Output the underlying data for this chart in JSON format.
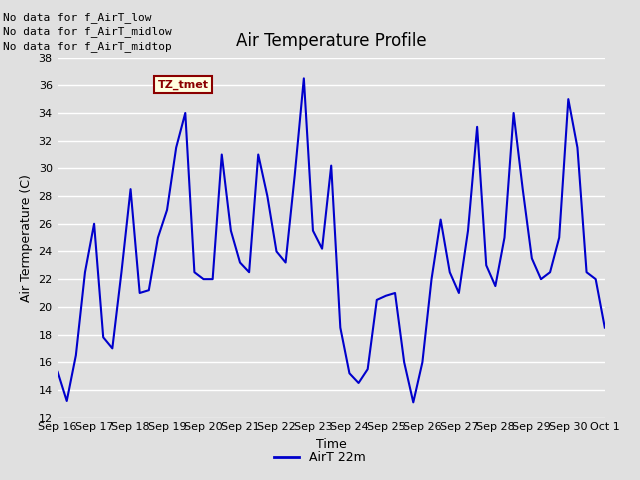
{
  "title": "Air Temperature Profile",
  "xlabel": "Time",
  "ylabel": "Air Termperature (C)",
  "ylim": [
    12,
    38
  ],
  "line_color": "#0000cc",
  "line_width": 1.5,
  "background_color": "#e0e0e0",
  "plot_bg_color": "#e0e0e0",
  "legend_label": "AirT 22m",
  "legend_line_color": "#0000cc",
  "no_data_texts": [
    "No data for f_AirT_low",
    "No data for f_AirT_midlow",
    "No data for f_AirT_midtop"
  ],
  "tz_label": "TZ_tmet",
  "x_tick_labels": [
    "Sep 16",
    "Sep 17",
    "Sep 18",
    "Sep 19",
    "Sep 20",
    "Sep 21",
    "Sep 22",
    "Sep 23",
    "Sep 24",
    "Sep 25",
    "Sep 26",
    "Sep 27",
    "Sep 28",
    "Sep 29",
    "Sep 30",
    "Oct 1"
  ],
  "yticks": [
    12,
    14,
    16,
    18,
    20,
    22,
    24,
    26,
    28,
    30,
    32,
    34,
    36,
    38
  ],
  "time_data": [
    0.0,
    0.25,
    0.5,
    0.75,
    1.0,
    1.25,
    1.5,
    1.75,
    2.0,
    2.25,
    2.5,
    2.75,
    3.0,
    3.25,
    3.5,
    3.75,
    4.0,
    4.25,
    4.5,
    4.75,
    5.0,
    5.25,
    5.5,
    5.75,
    6.0,
    6.25,
    6.5,
    6.75,
    7.0,
    7.25,
    7.5,
    7.75,
    8.0,
    8.25,
    8.5,
    8.75,
    9.0,
    9.25,
    9.5,
    9.75,
    10.0,
    10.25,
    10.5,
    10.75,
    11.0,
    11.25,
    11.5,
    11.75,
    12.0,
    12.25,
    12.5,
    12.75,
    13.0,
    13.25,
    13.5,
    13.75,
    14.0,
    14.25,
    14.5,
    14.75,
    15.0
  ],
  "temp_data": [
    15.3,
    13.2,
    16.5,
    22.5,
    26.0,
    17.8,
    17.0,
    22.5,
    28.5,
    21.0,
    21.2,
    25.0,
    27.0,
    31.5,
    34.0,
    22.5,
    22.0,
    22.0,
    31.0,
    25.5,
    23.2,
    22.5,
    31.0,
    28.0,
    24.0,
    23.2,
    29.5,
    36.5,
    25.5,
    24.2,
    30.2,
    18.5,
    15.2,
    14.5,
    15.5,
    20.5,
    20.8,
    21.0,
    16.0,
    13.1,
    16.0,
    22.0,
    26.3,
    22.5,
    21.0,
    25.5,
    33.0,
    23.0,
    21.5,
    25.0,
    34.0,
    28.5,
    23.5,
    22.0,
    22.5,
    25.0,
    35.0,
    31.5,
    22.5,
    22.0,
    18.5
  ]
}
